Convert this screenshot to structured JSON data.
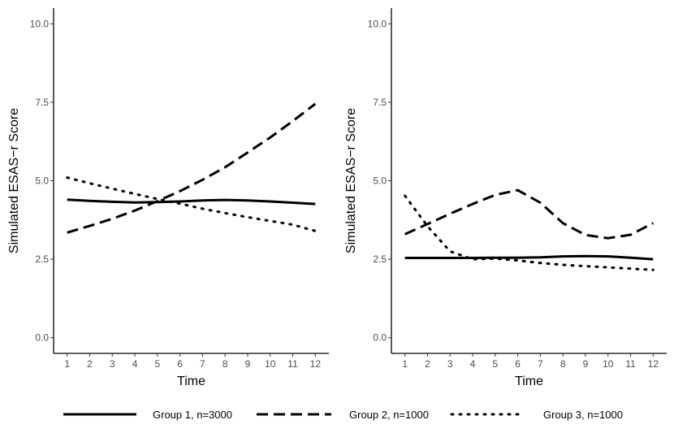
{
  "chart_data": [
    {
      "type": "line",
      "title": "",
      "xlabel": "Time",
      "ylabel": "Simulated ESAS−r Score",
      "x": [
        1,
        2,
        3,
        4,
        5,
        6,
        7,
        8,
        9,
        10,
        11,
        12
      ],
      "xlim": [
        0.4,
        12.6
      ],
      "ylim": [
        -0.5,
        10.5
      ],
      "yticks": [
        0.0,
        2.5,
        5.0,
        7.5,
        10.0
      ],
      "ytick_labels": [
        "0.0",
        "2.5",
        "5.0",
        "7.5",
        "10.0"
      ],
      "grid": false,
      "series": [
        {
          "name": "Group 1, n=3000",
          "style": "solid",
          "values": [
            4.4,
            4.36,
            4.33,
            4.31,
            4.32,
            4.34,
            4.37,
            4.39,
            4.37,
            4.34,
            4.3,
            4.26
          ]
        },
        {
          "name": "Group 2, n=1000",
          "style": "dashed",
          "values": [
            3.35,
            3.56,
            3.79,
            4.05,
            4.35,
            4.67,
            5.03,
            5.43,
            5.9,
            6.38,
            6.9,
            7.45
          ]
        },
        {
          "name": "Group 3, n=1000",
          "style": "dotted",
          "values": [
            5.1,
            4.92,
            4.75,
            4.58,
            4.42,
            4.27,
            4.11,
            3.97,
            3.84,
            3.72,
            3.6,
            3.4
          ]
        }
      ]
    },
    {
      "type": "line",
      "title": "",
      "xlabel": "Time",
      "ylabel": "Simulated ESAS−r Score",
      "x": [
        1,
        2,
        3,
        4,
        5,
        6,
        7,
        8,
        9,
        10,
        11,
        12
      ],
      "xlim": [
        0.4,
        12.6
      ],
      "ylim": [
        -0.5,
        10.5
      ],
      "yticks": [
        0.0,
        2.5,
        5.0,
        7.5,
        10.0
      ],
      "ytick_labels": [
        "0.0",
        "2.5",
        "5.0",
        "7.5",
        "10.0"
      ],
      "grid": false,
      "series": [
        {
          "name": "Group 1, n=3000",
          "style": "solid",
          "values": [
            2.54,
            2.54,
            2.54,
            2.54,
            2.55,
            2.55,
            2.56,
            2.59,
            2.6,
            2.59,
            2.55,
            2.5
          ]
        },
        {
          "name": "Group 2, n=1000",
          "style": "dashed",
          "values": [
            3.3,
            3.62,
            3.95,
            4.26,
            4.55,
            4.7,
            4.3,
            3.65,
            3.27,
            3.17,
            3.28,
            3.65
          ]
        },
        {
          "name": "Group 3, n=1000",
          "style": "dotted",
          "values": [
            4.52,
            3.55,
            2.75,
            2.5,
            2.52,
            2.46,
            2.38,
            2.32,
            2.28,
            2.24,
            2.2,
            2.16
          ]
        }
      ]
    }
  ],
  "legend": {
    "position": "bottom",
    "entries": [
      "Group 1, n=3000",
      "Group 2, n=1000",
      "Group 3, n=1000"
    ]
  },
  "colors": {
    "line": "#000000",
    "tick_label": "#4d4d4d",
    "axis": "#000000"
  }
}
